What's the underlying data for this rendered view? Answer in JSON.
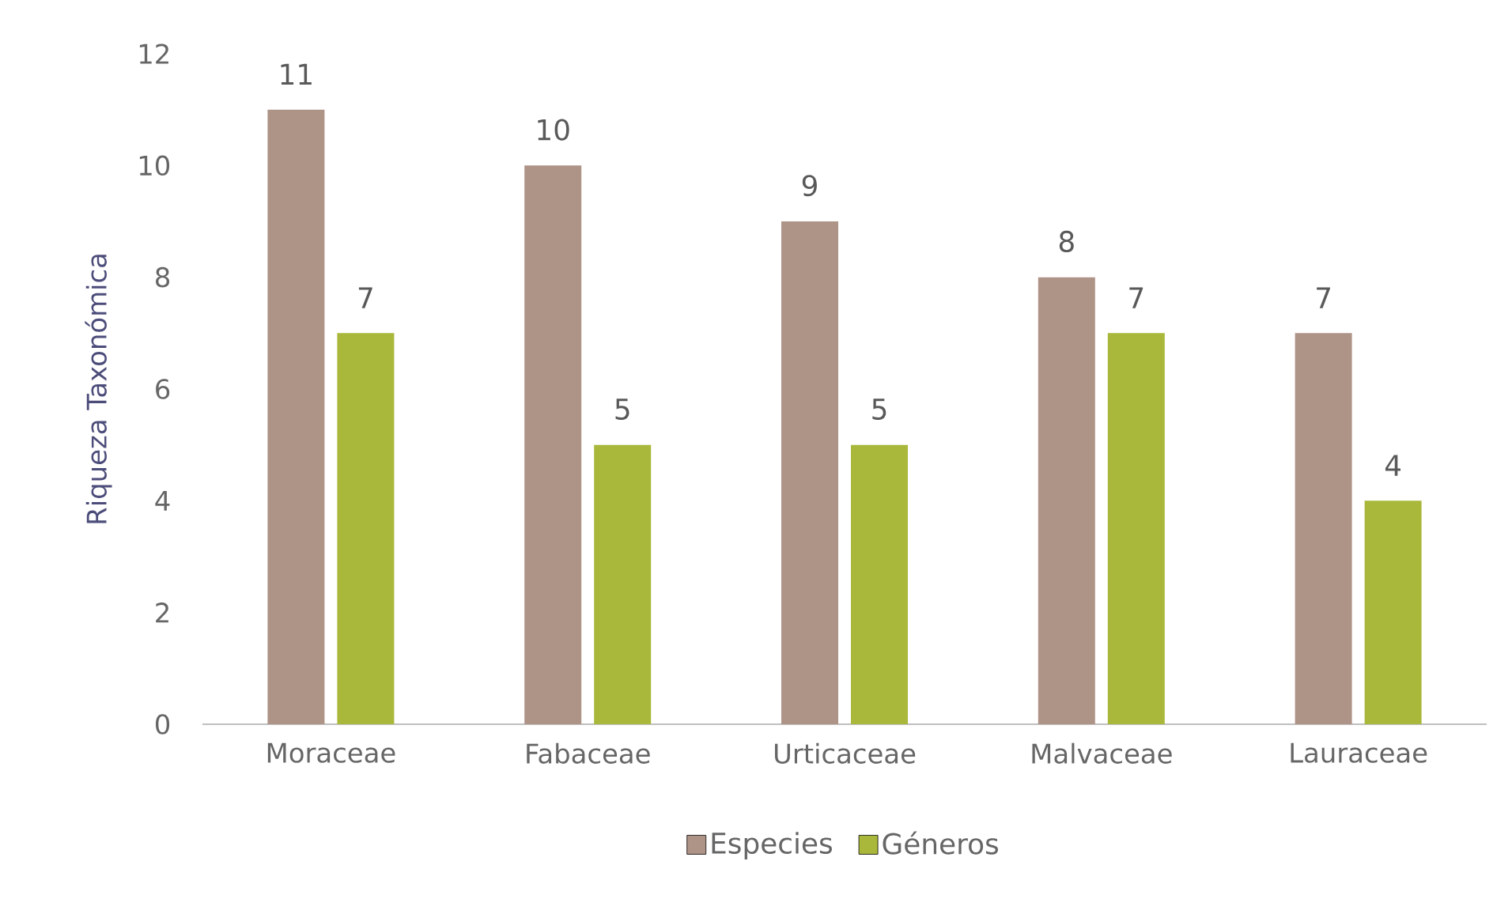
{
  "chart_data": {
    "type": "bar",
    "ylabel": "Riqueza Taxonómica",
    "categories": [
      "Moraceae",
      "Fabaceae",
      "Urticaceae",
      "Malvaceae",
      "Lauraceae"
    ],
    "series": [
      {
        "name": "Especies",
        "color": "#ae9387",
        "values": [
          11,
          10,
          9,
          8,
          7
        ]
      },
      {
        "name": "Géneros",
        "color": "#a9b83a",
        "values": [
          7,
          5,
          5,
          7,
          4
        ]
      }
    ],
    "ylim": [
      0,
      12
    ],
    "yticks": [
      0,
      2,
      4,
      6,
      8,
      10,
      12
    ],
    "grid": false,
    "legend": "bottom",
    "data_labels": true
  }
}
